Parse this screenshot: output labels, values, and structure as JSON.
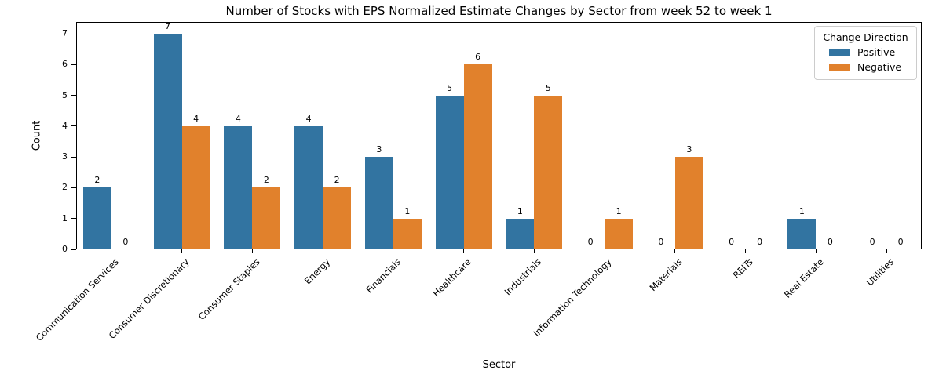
{
  "chart_data": {
    "type": "bar",
    "title": "Number of Stocks with EPS Normalized Estimate Changes by Sector from week 52 to week 1",
    "xlabel": "Sector",
    "ylabel": "Count",
    "ylim": [
      0,
      7.4
    ],
    "yticks": [
      0,
      1,
      2,
      3,
      4,
      5,
      6,
      7
    ],
    "grid": false,
    "bar_value_labels": true,
    "categories": [
      "Communication Services",
      "Consumer Discretionary",
      "Consumer Staples",
      "Energy",
      "Financials",
      "Healthcare",
      "Industrials",
      "Information Technology",
      "Materials",
      "REITs",
      "Real Estate",
      "Utilities"
    ],
    "series": [
      {
        "name": "Positive",
        "color": "#3274A1",
        "values": [
          2,
          7,
          4,
          4,
          3,
          5,
          1,
          0,
          0,
          0,
          1,
          0
        ]
      },
      {
        "name": "Negative",
        "color": "#E1812C",
        "values": [
          0,
          4,
          2,
          2,
          1,
          6,
          5,
          1,
          3,
          0,
          0,
          0
        ]
      }
    ],
    "legend": {
      "title": "Change Direction",
      "position": "upper right"
    },
    "colors": {
      "positive": "#3274A1",
      "negative": "#E1812C",
      "axis": "#000000",
      "legend_border": "#cccccc",
      "background": "#ffffff"
    }
  }
}
